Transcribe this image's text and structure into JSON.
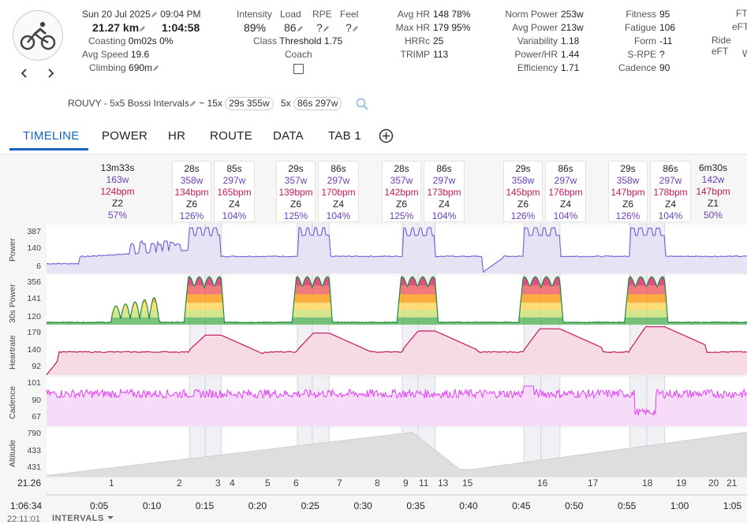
{
  "header": {
    "date": "Sun 20 Jul 2025",
    "time": "09:04 PM",
    "distance": "21.27 km",
    "duration": "1:04:58",
    "coasting_label": "Coasting",
    "coasting_value": "0m02s 0%",
    "avg_speed_label": "Avg Speed",
    "avg_speed_value": "19.6",
    "climbing_label": "Climbing",
    "climbing_value": "690m",
    "intensity_label": "Intensity",
    "intensity_value": "89%",
    "load_label": "Load",
    "load_value": "86",
    "rpe_label": "RPE",
    "rpe_value": "?",
    "feel_label": "Feel",
    "feel_value": "?",
    "class_label": "Class",
    "class_value": "Threshold 1.75",
    "coach_label": "Coach",
    "avg_hr_label": "Avg HR",
    "avg_hr_value": "148 78%",
    "max_hr_label": "Max HR",
    "max_hr_value": "179 95%",
    "hrrc_label": "HRRc",
    "hrrc_value": "25",
    "trimp_label": "TRIMP",
    "trimp_value": "113",
    "norm_power_label": "Norm Power",
    "norm_power_value": "253w",
    "avg_power_label": "Avg Power",
    "avg_power_value": "213w",
    "variability_label": "Variability",
    "variability_value": "1.18",
    "power_hr_label": "Power/HR",
    "power_hr_value": "1.44",
    "efficiency_label": "Efficiency",
    "efficiency_value": "1.71",
    "fitness_label": "Fitness",
    "fitness_value": "95",
    "fatigue_label": "Fatigue",
    "fatigue_value": "106",
    "form_label": "Form",
    "form_value": "-11",
    "srpe_label": "S-RPE",
    "srpe_value": "?",
    "cadence_label": "Cadence",
    "cadence_value": "90",
    "ftp_label": "FT",
    "eftp_label": "eFT",
    "ride_eftp_label": "Ride eFT",
    "w_label": "W"
  },
  "workout": {
    "name": "ROUVY - 5x5 Bossi Intervals",
    "sep": "~",
    "set1_reps": "15x",
    "set1_chip": "29s 355w",
    "set2_reps": "5x",
    "set2_chip": "86s 297w"
  },
  "tabs": [
    "TIMELINE",
    "POWER",
    "HR",
    "ROUTE",
    "DATA",
    "TAB 1"
  ],
  "intervals": [
    {
      "dur": "13m33s",
      "w": "163w",
      "bpm": "124bpm",
      "zone": "Z2",
      "pct": "57%"
    },
    {
      "dur": "28s",
      "w": "358w",
      "bpm": "134bpm",
      "zone": "Z6",
      "pct": "126%"
    },
    {
      "dur": "85s",
      "w": "297w",
      "bpm": "165bpm",
      "zone": "Z4",
      "pct": "104%"
    },
    {
      "dur": "29s",
      "w": "357w",
      "bpm": "139bpm",
      "zone": "Z6",
      "pct": "125%"
    },
    {
      "dur": "86s",
      "w": "297w",
      "bpm": "170bpm",
      "zone": "Z4",
      "pct": "104%"
    },
    {
      "dur": "28s",
      "w": "357w",
      "bpm": "142bpm",
      "zone": "Z6",
      "pct": "125%"
    },
    {
      "dur": "86s",
      "w": "297w",
      "bpm": "173bpm",
      "zone": "Z4",
      "pct": "104%"
    },
    {
      "dur": "29s",
      "w": "358w",
      "bpm": "145bpm",
      "zone": "Z6",
      "pct": "126%"
    },
    {
      "dur": "86s",
      "w": "297w",
      "bpm": "176bpm",
      "zone": "Z4",
      "pct": "104%"
    },
    {
      "dur": "29s",
      "w": "358w",
      "bpm": "147bpm",
      "zone": "Z6",
      "pct": "126%"
    },
    {
      "dur": "86s",
      "w": "297w",
      "bpm": "178bpm",
      "zone": "Z4",
      "pct": "104%"
    },
    {
      "dur": "6m30s",
      "w": "142w",
      "bpm": "147bpm",
      "zone": "Z1",
      "pct": "50%"
    }
  ],
  "charts": {
    "power": {
      "title": "Power",
      "ticks": [
        "387",
        "140",
        "6"
      ]
    },
    "power30": {
      "title": "30s Power",
      "ticks": [
        "356",
        "141",
        "120"
      ]
    },
    "hr": {
      "title": "Heartrate",
      "ticks": [
        "179",
        "140",
        "92"
      ]
    },
    "cadence": {
      "title": "Cadence",
      "ticks": [
        "101",
        "90",
        "67"
      ]
    },
    "altitude": {
      "title": "Altitude",
      "ticks": [
        "790",
        "433",
        "431"
      ]
    }
  },
  "laps": [
    "1",
    "2",
    "3",
    "4",
    "5",
    "6",
    "7",
    "8",
    "9",
    "11",
    "13",
    "15",
    "16",
    "17",
    "18",
    "19",
    "20",
    "21"
  ],
  "distance_left": "21.26",
  "elapsed_left": "1:06:34",
  "clock_left": "22:11:01",
  "x_ticks": [
    "0:05",
    "0:10",
    "0:15",
    "0:20",
    "0:25",
    "0:30",
    "0:35",
    "0:40",
    "0:45",
    "0:50",
    "0:55",
    "1:00",
    "1:05"
  ],
  "intervals_dropdown": "INTERVALS",
  "colors": {
    "accent": "#1565c0",
    "power": "#7b68d6",
    "hr": "#c2185b",
    "cadence": "#e040fb",
    "altitude": "#bdbdbd"
  }
}
